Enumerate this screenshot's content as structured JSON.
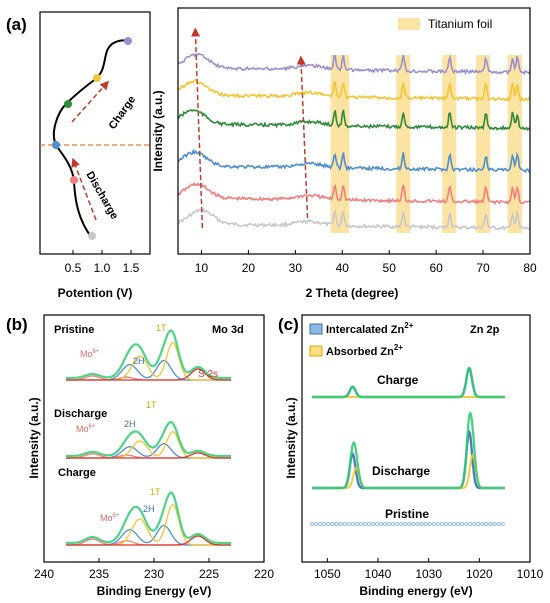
{
  "chart_data": [
    {
      "panel": "(a)",
      "type": "line",
      "title": "",
      "xlabel": "Potention (V)",
      "ylabel": "",
      "xlim": [
        0,
        1.5
      ],
      "xticks": [
        "0.5",
        "1.0",
        "1.5"
      ],
      "annotations": [
        "Charge",
        "Discharge"
      ],
      "points": [
        {
          "x": 0.74,
          "y": 0.08,
          "color": "#c8c8c8"
        },
        {
          "x": 0.47,
          "y": 0.38,
          "color": "#f07f7f"
        },
        {
          "x": 0.08,
          "y": 0.54,
          "color": "#4f8fd0"
        },
        {
          "x": 0.24,
          "y": 0.71,
          "color": "#2e8b3a"
        },
        {
          "x": 0.86,
          "y": 0.82,
          "color": "#f4c531"
        },
        {
          "x": 1.42,
          "y": 0.97,
          "color": "#9b8fd0"
        }
      ]
    },
    {
      "panel": "(a)",
      "type": "line",
      "xlabel": "2 Theta (degree)",
      "ylabel": "Intensity (a.u.)",
      "xlim": [
        5,
        80
      ],
      "xticks": [
        10,
        20,
        30,
        40,
        50,
        60,
        70,
        80
      ],
      "legend": "Titanium foil",
      "legend_position": "top-right",
      "highlight_bands": [
        [
          37.5,
          41.5
        ],
        [
          51.5,
          54.5
        ],
        [
          61.3,
          64.3
        ],
        [
          68.5,
          71.5
        ],
        [
          75.2,
          78.3
        ]
      ],
      "ti_peaks": [
        38.4,
        40.2,
        53.0,
        62.9,
        70.6,
        76.3,
        77.3
      ],
      "series": [
        {
          "color": "#c8c8c8",
          "broad_peak": 10
        },
        {
          "color": "#f07f7f",
          "broad_peak": 9
        },
        {
          "color": "#4f8fd0",
          "broad_peak": 8.5
        },
        {
          "color": "#2e8b3a",
          "broad_peak": 8.2
        },
        {
          "color": "#f4c531",
          "broad_peak": 8.5
        },
        {
          "color": "#9b8fd0",
          "broad_peak": 9
        }
      ]
    },
    {
      "panel": "(b)",
      "type": "line",
      "xlabel": "Binding Energy (eV)",
      "ylabel": "Intensity (a.u.)",
      "xlim": [
        240,
        220
      ],
      "xticks": [
        240,
        235,
        230,
        225,
        220
      ],
      "label": "Mo 3d",
      "series": [
        {
          "name": "Pristine",
          "labels": [
            "Mo6+",
            "2H",
            "1T",
            "S 2s"
          ]
        },
        {
          "name": "Discharge",
          "labels": [
            "Mo6+",
            "2H",
            "1T"
          ]
        },
        {
          "name": "Charge",
          "labels": [
            "Mo6+",
            "2H",
            "1T"
          ]
        }
      ]
    },
    {
      "panel": "(c)",
      "type": "line",
      "xlabel": "Binding energy (eV)",
      "ylabel": "Intensity (a.u.)",
      "xlim": [
        1055,
        1010
      ],
      "xticks": [
        1050,
        1040,
        1030,
        1020,
        1010
      ],
      "label": "Zn 2p",
      "legend": [
        "Intercalated Zn2+",
        "Absorbed   Zn2+"
      ],
      "series": [
        {
          "name": "Charge",
          "peaks": [
            1045,
            1022
          ]
        },
        {
          "name": "Discharge",
          "peaks": [
            1045.5,
            1022.5
          ]
        },
        {
          "name": "Pristine",
          "peaks": []
        }
      ]
    }
  ],
  "text": {
    "a_tag": "(a)",
    "b_tag": "(b)",
    "c_tag": "(c)",
    "a_charge": "Charge",
    "a_discharge": "Discharge",
    "a_xlabel": "Potention (V)",
    "a_tick1": "0.5",
    "a_tick2": "1.0",
    "a_tick3": "1.5",
    "xrd_ylabel": "Intensity (a.u.)",
    "xrd_xlabel": "2 Theta (degree)",
    "xrd_legend": "Titanium foil",
    "b_pristine": "Pristine",
    "b_discharge": "Discharge",
    "b_charge": "Charge",
    "b_mo3d": "Mo 3d",
    "b_ylabel": "Intensity (a.u.)",
    "b_xlabel": "Binding Energy (eV)",
    "b_1t": "1T",
    "b_2h": "2H",
    "b_s2s": "S 2s",
    "b_mo": "Mo",
    "b_mosup": "6+",
    "c_zn2p": "Zn 2p",
    "c_ylabel": "Intensity (a.u.)",
    "c_xlabel": "Binding energy (eV)",
    "c_intercalated": "Intercalated Zn",
    "c_absorbed": "Absorbed   Zn",
    "c_sup": "2+",
    "c_charge": "Charge",
    "c_discharge": "Discharge",
    "c_pristine": "Pristine"
  }
}
